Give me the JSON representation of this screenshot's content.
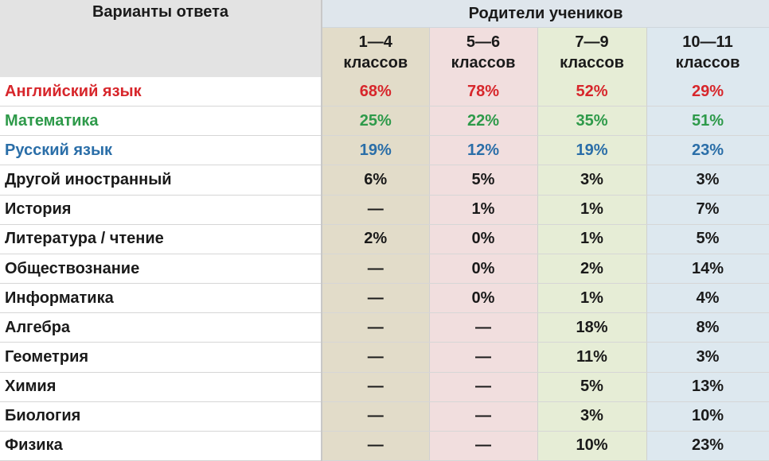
{
  "header": {
    "variants_label": "Варианты ответа",
    "parents_label": "Родители учеников",
    "grades": [
      {
        "line1": "1—4",
        "line2": "классов"
      },
      {
        "line1": "5—6",
        "line2": "классов"
      },
      {
        "line1": "7—9",
        "line2": "классов"
      },
      {
        "line1": "10—11",
        "line2": "классов"
      }
    ]
  },
  "colors": {
    "english": "#d7262b",
    "math": "#2e9a4a",
    "russian": "#2a6ea8",
    "grade_1_4_bg": "#e2dcc9",
    "grade_5_6_bg": "#f1dede",
    "grade_7_9_bg": "#e6edd6",
    "grade_10_11_bg": "#dde8ef"
  },
  "rows": [
    {
      "label": "Английский язык",
      "values": [
        "68%",
        "78%",
        "52%",
        "29%"
      ]
    },
    {
      "label": "Математика",
      "values": [
        "25%",
        "22%",
        "35%",
        "51%"
      ]
    },
    {
      "label": "Русский язык",
      "values": [
        "19%",
        "12%",
        "19%",
        "23%"
      ]
    },
    {
      "label": "Другой иностранный",
      "values": [
        "6%",
        "5%",
        "3%",
        "3%"
      ]
    },
    {
      "label": "История",
      "values": [
        "—",
        "1%",
        "1%",
        "7%"
      ]
    },
    {
      "label": "Литература / чтение",
      "values": [
        "2%",
        "0%",
        "1%",
        "5%"
      ]
    },
    {
      "label": "Обществознание",
      "values": [
        "—",
        "0%",
        "2%",
        "14%"
      ]
    },
    {
      "label": "Информатика",
      "values": [
        "—",
        "0%",
        "1%",
        "4%"
      ]
    },
    {
      "label": "Алгебра",
      "values": [
        "—",
        "—",
        "18%",
        "8%"
      ]
    },
    {
      "label": "Геометрия",
      "values": [
        "—",
        "—",
        "11%",
        "3%"
      ]
    },
    {
      "label": "Химия",
      "values": [
        "—",
        "—",
        "5%",
        "13%"
      ]
    },
    {
      "label": "Биология",
      "values": [
        "—",
        "—",
        "3%",
        "10%"
      ]
    },
    {
      "label": "Физика",
      "values": [
        "—",
        "—",
        "10%",
        "23%"
      ]
    }
  ]
}
